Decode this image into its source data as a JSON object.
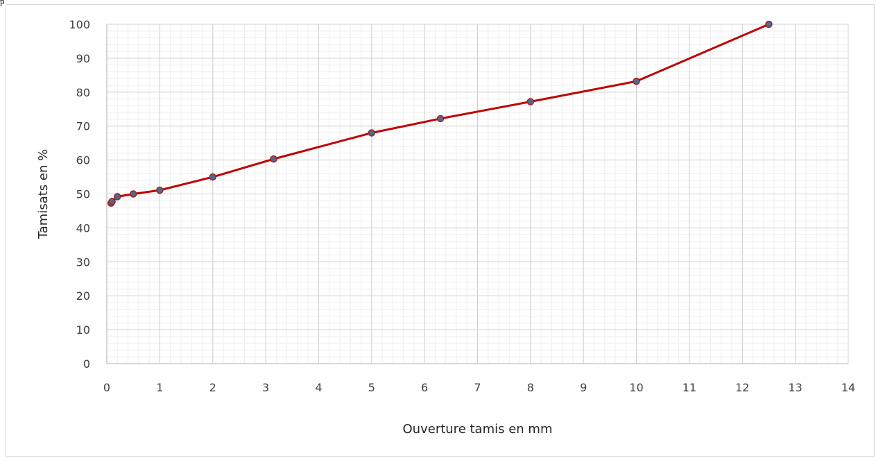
{
  "corner_text": "p",
  "chart_data": {
    "type": "scatter",
    "xlabel": "Ouverture tamis en mm",
    "ylabel": "Tamisats en %",
    "xlim": [
      0,
      14
    ],
    "ylim": [
      0,
      100
    ],
    "xticks": [
      0,
      1,
      2,
      3,
      4,
      5,
      6,
      7,
      8,
      9,
      10,
      11,
      12,
      13,
      14
    ],
    "yticks": [
      0,
      10,
      20,
      30,
      40,
      50,
      60,
      70,
      80,
      90,
      100
    ],
    "grid": true,
    "minor_grid": true,
    "legend": "none",
    "series": [
      {
        "x": [
          0.08,
          0.1,
          0.2,
          0.5,
          1,
          2,
          3.15,
          5,
          6.3,
          8,
          10,
          12.5
        ],
        "y": [
          47.3,
          47.8,
          49.2,
          50.0,
          51.1,
          55.0,
          60.3,
          68.0,
          72.2,
          77.2,
          83.2,
          100
        ],
        "line_color": "#C00000",
        "marker_fill": "#4F6A8F",
        "marker_edge": "#A02020"
      }
    ]
  }
}
